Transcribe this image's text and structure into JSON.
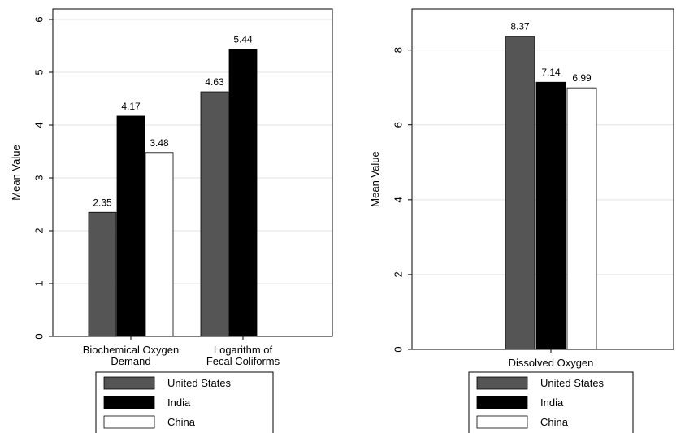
{
  "chart_data": [
    {
      "type": "bar",
      "categories": [
        "Biochemical Oxygen\nDemand",
        "Logarithm of\nFecal Coliforms"
      ],
      "series": [
        {
          "name": "United States",
          "values": [
            2.35,
            4.63
          ]
        },
        {
          "name": "India",
          "values": [
            4.17,
            5.44
          ]
        },
        {
          "name": "China",
          "values": [
            3.48,
            null
          ]
        }
      ],
      "ylabel": "Mean Value",
      "xlabel": "",
      "ylim": [
        0,
        6.2
      ],
      "yticks": [
        0,
        1,
        2,
        3,
        4,
        5,
        6
      ],
      "grid": true,
      "legend": "bottom"
    },
    {
      "type": "bar",
      "categories": [
        "Dissolved Oxygen"
      ],
      "series": [
        {
          "name": "United States",
          "values": [
            8.37
          ]
        },
        {
          "name": "India",
          "values": [
            7.14
          ]
        },
        {
          "name": "China",
          "values": [
            6.99
          ]
        }
      ],
      "ylabel": "Mean Value",
      "xlabel": "",
      "ylim": [
        0,
        9.1
      ],
      "yticks": [
        0,
        2,
        4,
        6,
        8
      ],
      "grid": true,
      "legend": "bottom"
    }
  ],
  "colors": {
    "United States": "#555555",
    "India": "#000000",
    "China": "#ffffff"
  }
}
